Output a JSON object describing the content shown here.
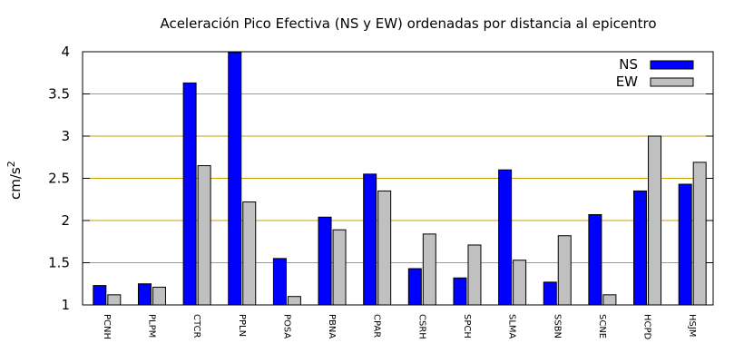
{
  "chart_data": {
    "type": "bar",
    "title": "Aceleración Pico Efectiva (NS y EW) ordenadas por distancia al epicentro",
    "ylabel": "cm/s",
    "ylabel_sup": "2",
    "xlabel": "",
    "ylim": [
      1,
      4
    ],
    "yticks": [
      1,
      1.5,
      2,
      2.5,
      3,
      3.5,
      4
    ],
    "ytick_labels": [
      "1",
      "1.5",
      "2",
      "2.5",
      "3",
      "3.5",
      "4"
    ],
    "grid": "horizontal",
    "legend_position": "top-right",
    "categories": [
      "PCNH",
      "PLPM",
      "CTCR",
      "PPLN",
      "POSA",
      "PBNA",
      "CPAR",
      "CSRH",
      "SPCH",
      "SLMA",
      "SSBN",
      "SCNE",
      "HCPD",
      "HSJM"
    ],
    "series": [
      {
        "name": "NS",
        "color": "#0000ff",
        "values": [
          1.23,
          1.25,
          3.63,
          3.99,
          1.55,
          2.04,
          2.55,
          1.43,
          1.32,
          2.6,
          1.27,
          2.07,
          2.35,
          2.43
        ]
      },
      {
        "name": "EW",
        "color": "#c0c0c0",
        "values": [
          1.12,
          1.21,
          2.65,
          2.22,
          1.1,
          1.89,
          2.35,
          1.84,
          1.71,
          1.53,
          1.82,
          1.12,
          3.0,
          2.69
        ]
      }
    ],
    "grid_color": "#c8a000"
  }
}
